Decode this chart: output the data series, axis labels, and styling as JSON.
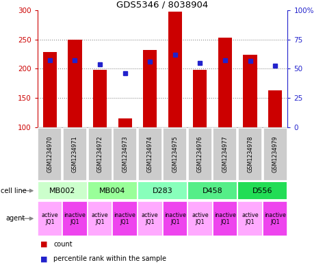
{
  "title": "GDS5346 / 8038904",
  "samples": [
    "GSM1234970",
    "GSM1234971",
    "GSM1234972",
    "GSM1234973",
    "GSM1234974",
    "GSM1234975",
    "GSM1234976",
    "GSM1234977",
    "GSM1234978",
    "GSM1234979"
  ],
  "bar_values": [
    228,
    250,
    198,
    115,
    232,
    298,
    198,
    253,
    224,
    163
  ],
  "blue_values": [
    215,
    215,
    208,
    192,
    212,
    224,
    210,
    215,
    213,
    205
  ],
  "bar_bottom": 100,
  "ylim_left": [
    100,
    300
  ],
  "ylim_right": [
    0,
    100
  ],
  "yticks_left": [
    100,
    150,
    200,
    250,
    300
  ],
  "yticks_right": [
    0,
    25,
    50,
    75,
    100
  ],
  "ytick_labels_left": [
    "100",
    "150",
    "200",
    "250",
    "300"
  ],
  "ytick_labels_right": [
    "0",
    "25",
    "50",
    "75",
    "100%"
  ],
  "bar_color": "#cc0000",
  "blue_color": "#2222cc",
  "cell_line_groups": [
    {
      "label": "MB002",
      "cols": [
        0,
        1
      ],
      "color": "#ccffcc"
    },
    {
      "label": "MB004",
      "cols": [
        2,
        3
      ],
      "color": "#99ff99"
    },
    {
      "label": "D283",
      "cols": [
        4,
        5
      ],
      "color": "#88ffbb"
    },
    {
      "label": "D458",
      "cols": [
        6,
        7
      ],
      "color": "#55ee88"
    },
    {
      "label": "D556",
      "cols": [
        8,
        9
      ],
      "color": "#22dd55"
    }
  ],
  "agent_colors_even": "#ffaaff",
  "agent_colors_odd": "#ee44ee",
  "grid_color": "#888888",
  "bar_width": 0.55,
  "tick_color_left": "#cc0000",
  "tick_color_right": "#2222cc",
  "sample_box_color": "#cccccc",
  "label_arrow_color": "#888888"
}
